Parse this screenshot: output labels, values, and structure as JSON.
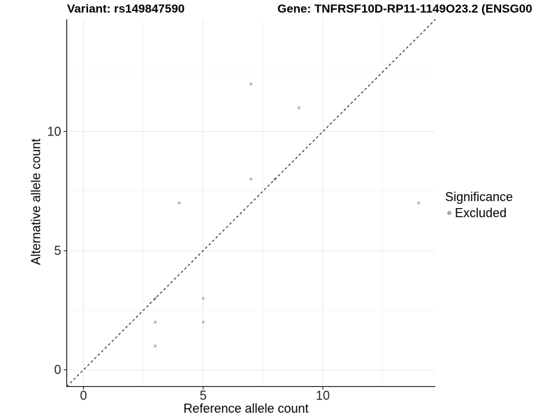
{
  "title": {
    "variant": "Variant: rs149847590",
    "gene": "Gene: TNFRSF10D-RP11-1149O23.2 (ENSG00"
  },
  "legend": {
    "title": "Significance",
    "items": [
      {
        "label": "Excluded",
        "color": "#a8a8a8"
      }
    ]
  },
  "colors": {
    "point": "#bcbcbc",
    "grid_major": "#e9e9e9",
    "grid_minor": "#f4f4f4",
    "axis_line": "#1a1a1a",
    "tick": "#1a1a1a",
    "tick_text": "#262626",
    "diagonal": "#1a1a1a"
  },
  "chart_data": {
    "type": "scatter",
    "title": "Variant: rs149847590",
    "subtitle": "Gene: TNFRSF10D-RP11-1149O23.2 (ENSG00",
    "xlabel": "Reference allele count",
    "ylabel": "Alternative allele count",
    "xlim": [
      -0.7,
      14.7
    ],
    "ylim": [
      -0.7,
      14.7
    ],
    "grid": true,
    "x_ticks": {
      "major": [
        0,
        5,
        10
      ],
      "minor": [
        2.5,
        7.5,
        12.5
      ],
      "labels": [
        "0",
        "5",
        "10"
      ]
    },
    "y_ticks": {
      "major": [
        0,
        5,
        10
      ],
      "minor": [
        2.5,
        7.5,
        12.5
      ],
      "labels": [
        "0",
        "5",
        "10"
      ]
    },
    "series": [
      {
        "name": "Excluded",
        "color": "#bcbcbc",
        "points": [
          [
            3,
            1
          ],
          [
            3,
            2
          ],
          [
            3,
            3
          ],
          [
            5,
            2
          ],
          [
            5,
            3
          ],
          [
            4,
            7
          ],
          [
            7,
            8
          ],
          [
            8,
            8
          ],
          [
            7,
            12
          ],
          [
            9,
            11
          ],
          [
            14,
            7
          ]
        ]
      }
    ],
    "reference_line": {
      "kind": "identity",
      "style": "dashed",
      "from": [
        -0.7,
        -0.7
      ],
      "to": [
        14.7,
        14.7
      ]
    },
    "legend_position": "right"
  }
}
